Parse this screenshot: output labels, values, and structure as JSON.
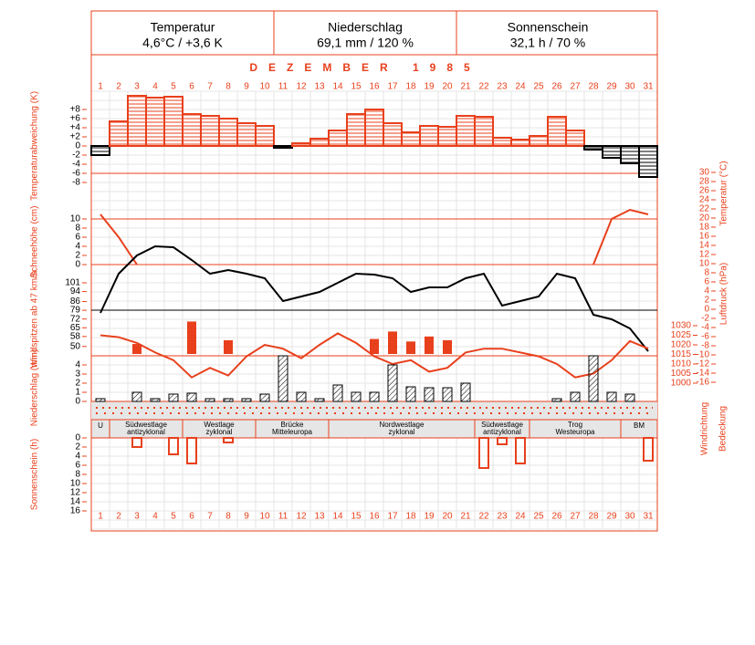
{
  "header": {
    "cells": [
      {
        "title": "Temperatur",
        "value": "4,6°C / +3,6 K"
      },
      {
        "title": "Niederschlag",
        "value": "69,1 mm / 120 %"
      },
      {
        "title": "Sonnenschein",
        "value": "32,1 h / 70 %"
      }
    ],
    "month": "DEZEMBER 1985"
  },
  "days": [
    1,
    2,
    3,
    4,
    5,
    6,
    7,
    8,
    9,
    10,
    11,
    12,
    13,
    14,
    15,
    16,
    17,
    18,
    19,
    20,
    21,
    22,
    23,
    24,
    25,
    26,
    27,
    28,
    29,
    30,
    31
  ],
  "weather_types": [
    {
      "lines": [
        "U"
      ],
      "days": [
        1,
        1
      ]
    },
    {
      "lines": [
        "Südwestlage",
        "antizyklonal"
      ],
      "days": [
        2,
        5
      ]
    },
    {
      "lines": [
        "Westlage",
        "zyklonal"
      ],
      "days": [
        6,
        9
      ]
    },
    {
      "lines": [
        "Brücke",
        "Mitteleuropa"
      ],
      "days": [
        10,
        13
      ]
    },
    {
      "lines": [
        "Nordwestlage",
        "zyklonal"
      ],
      "days": [
        14,
        21
      ]
    },
    {
      "lines": [
        "Südwestlage",
        "antizyklonal"
      ],
      "days": [
        22,
        24
      ]
    },
    {
      "lines": [
        "Trog",
        "Westeuropa"
      ],
      "days": [
        25,
        29
      ]
    },
    {
      "lines": [
        "BM"
      ],
      "days": [
        30,
        31
      ]
    }
  ],
  "side_labels": [
    "Windrichtung",
    "Bedeckung"
  ],
  "chart_data": [
    {
      "type": "step",
      "ylabel": "Temperaturabweichung (K)",
      "color": "#e8401c",
      "negative_color": "#000000",
      "ylim": [
        -12,
        12
      ],
      "yticks": [
        {
          "value": 8,
          "label": "+8"
        },
        {
          "value": 6,
          "label": "+6"
        },
        {
          "value": 4,
          "label": "+4"
        },
        {
          "value": 2,
          "label": "+2"
        },
        0,
        -2,
        -4,
        -6,
        -8
      ],
      "values": [
        -2,
        5.4,
        11,
        10.6,
        10.8,
        7,
        6.6,
        6,
        5,
        4.4,
        -0.4,
        0.6,
        1.6,
        3.4,
        7,
        8,
        5,
        3,
        4.4,
        4.2,
        6.6,
        6.4,
        1.8,
        1.4,
        2.2,
        6.4,
        3.4,
        -0.8,
        -2.6,
        -3.8,
        -6.8
      ]
    },
    {
      "type": "line",
      "ylabel": "Schneehöhe (cm)",
      "color": "#e8401c",
      "ylim": [
        0,
        12
      ],
      "yticks": [
        10,
        8,
        6,
        4,
        2,
        0
      ],
      "values": [
        11,
        6,
        0,
        null,
        null,
        null,
        null,
        null,
        null,
        null,
        null,
        null,
        null,
        null,
        null,
        null,
        null,
        null,
        null,
        null,
        null,
        null,
        null,
        null,
        null,
        null,
        null,
        0,
        10,
        12,
        11
      ]
    },
    {
      "type": "line",
      "ylabel": "Temperatur (°C)",
      "axis": "right",
      "color": "#000000",
      "ylim": [
        -16,
        30
      ],
      "yticks": [
        30,
        28,
        26,
        24,
        22,
        20,
        18,
        16,
        14,
        12,
        10,
        8,
        6,
        4,
        2,
        0,
        -2,
        -4,
        -6,
        -8,
        -10,
        -12,
        -14,
        -16
      ],
      "values": [
        -0.8,
        7.8,
        11.8,
        13.8,
        13.6,
        10.8,
        7.8,
        8.6,
        7.8,
        6.8,
        1.8,
        2.8,
        3.8,
        5.8,
        7.8,
        7.6,
        6.8,
        3.8,
        4.8,
        4.8,
        6.8,
        7.8,
        0.8,
        1.8,
        2.8,
        7.8,
        6.8,
        -1.2,
        -2.2,
        -4.2,
        -9.2
      ]
    },
    {
      "type": "bar",
      "ylabel": "Windspitzen ab 47 km/h",
      "color": "#e8401c",
      "ylim": [
        44,
        101
      ],
      "yticks": [
        101,
        94,
        86,
        79,
        72,
        65,
        58,
        50
      ],
      "values": [
        null,
        null,
        52,
        null,
        null,
        70,
        null,
        55,
        null,
        null,
        null,
        null,
        null,
        null,
        null,
        56,
        62,
        54,
        58,
        55,
        null,
        null,
        null,
        null,
        null,
        null,
        null,
        null,
        null,
        null,
        null
      ]
    },
    {
      "type": "line",
      "ylabel": "Luftdruck (hPa)",
      "axis": "right",
      "color": "#e8401c",
      "ylim": [
        1000,
        1030
      ],
      "yticks": [
        1030,
        1025,
        1020,
        1015,
        1010,
        1005,
        1000
      ],
      "values": [
        1025,
        1024,
        1021,
        1016,
        1012,
        1003,
        1008,
        1004,
        1014,
        1020,
        1018,
        1013,
        1020,
        1026,
        1021,
        1014,
        1010,
        1012,
        1006,
        1008,
        1016,
        1018,
        1018,
        1016,
        1014,
        1010,
        1003,
        1005,
        1012,
        1022,
        1018
      ]
    },
    {
      "type": "bar",
      "ylabel": "Niederschlag (mm)",
      "color": "#000000",
      "hatch": true,
      "ylim": [
        0,
        5
      ],
      "yticks": [
        4,
        3,
        2,
        1,
        0
      ],
      "values": [
        0.3,
        0,
        1,
        0.3,
        0.8,
        0.9,
        0.3,
        0.3,
        0.3,
        0.8,
        5,
        1,
        0.3,
        1.8,
        1,
        1,
        4,
        1.6,
        1.5,
        1.5,
        2,
        0,
        0,
        0,
        0,
        0.3,
        1,
        5,
        1,
        0.8,
        0
      ]
    },
    {
      "type": "bar_down",
      "ylabel": "Sonnenschein (h)",
      "color": "#e8401c",
      "ylim": [
        0,
        16
      ],
      "yticks": [
        0,
        2,
        4,
        6,
        8,
        10,
        12,
        14,
        16
      ],
      "values": [
        0,
        0,
        2,
        0,
        3.6,
        5.6,
        0,
        1,
        0,
        0,
        0,
        0,
        0,
        0,
        0,
        0,
        0,
        0,
        0,
        0,
        0,
        6.6,
        1.4,
        5.6,
        0,
        0,
        0,
        0,
        0,
        0,
        5
      ]
    }
  ]
}
